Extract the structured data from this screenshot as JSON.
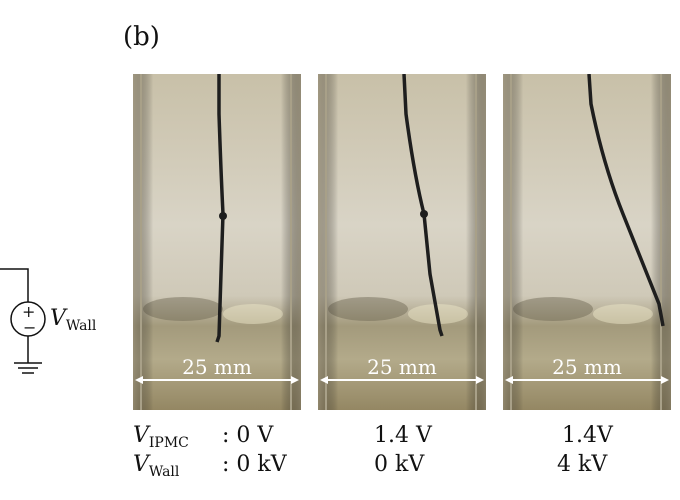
{
  "figure": {
    "panel_label": "(b)",
    "scale_bar_text": "25 mm",
    "circuit": {
      "source_label_main": "V",
      "source_label_sub": "Wall",
      "plus_sign": "+",
      "minus_sign": "−"
    },
    "row_labels": {
      "ipmc_main": "V",
      "ipmc_sub": "IPMC",
      "wall_main": "V",
      "wall_sub": "Wall"
    },
    "panels": [
      {
        "ipmc": ": 0 V",
        "wall": ": 0 kV"
      },
      {
        "ipmc": "1.4 V",
        "wall": "0 kV"
      },
      {
        "ipmc": "1.4V",
        "wall": "4 kV"
      }
    ]
  }
}
